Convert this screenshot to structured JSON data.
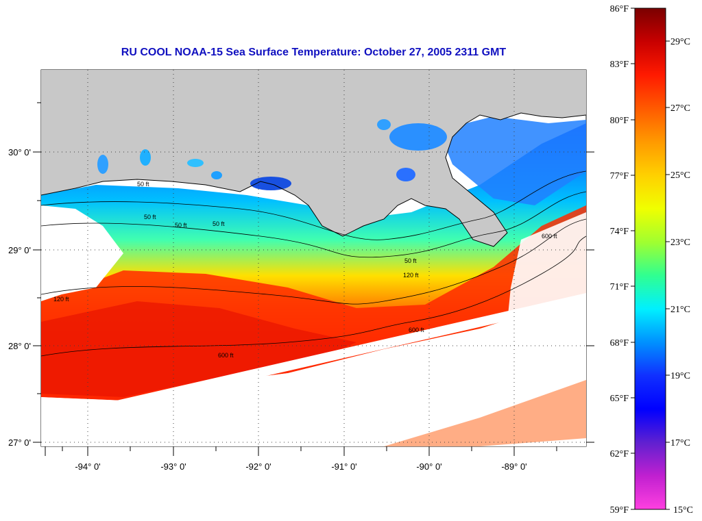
{
  "title": "RU COOL  NOAA-15  Sea Surface Temperature:  October 27, 2005 2311 GMT",
  "axes": {
    "lon_labels": [
      "-94° 0'",
      "-93° 0'",
      "-92° 0'",
      "-91° 0'",
      "-90° 0'",
      "-89° 0'"
    ],
    "lat_labels": [
      "30° 0'",
      "29° 0'",
      "28° 0'",
      "27° 0'"
    ]
  },
  "colorbar": {
    "fahrenheit_labels": [
      "86°F",
      "83°F",
      "80°F",
      "77°F",
      "74°F",
      "71°F",
      "68°F",
      "65°F",
      "62°F",
      "59°F"
    ],
    "celsius_labels": [
      "29°C",
      "27°C",
      "25°C",
      "23°C",
      "21°C",
      "19°C",
      "17°C",
      "15°C"
    ],
    "gradient_colors": [
      "#7a0000",
      "#c80000",
      "#ff1a00",
      "#ff5a00",
      "#ff9a00",
      "#ffd000",
      "#f0ff00",
      "#a0ff30",
      "#30ff90",
      "#00f0ff",
      "#0090ff",
      "#1030ff",
      "#0000ff",
      "#6020d0",
      "#c020d0",
      "#ff40e0"
    ]
  },
  "contour_labels": [
    "50 ft",
    "50 ft",
    "50 ft",
    "50 ft",
    "50 ft",
    "120 ft",
    "120 ft",
    "600 ft",
    "600 ft",
    "600 ft"
  ],
  "colors": {
    "land": "#c8c8c8",
    "title": "#1010c0",
    "no_data": "#ffffff"
  }
}
